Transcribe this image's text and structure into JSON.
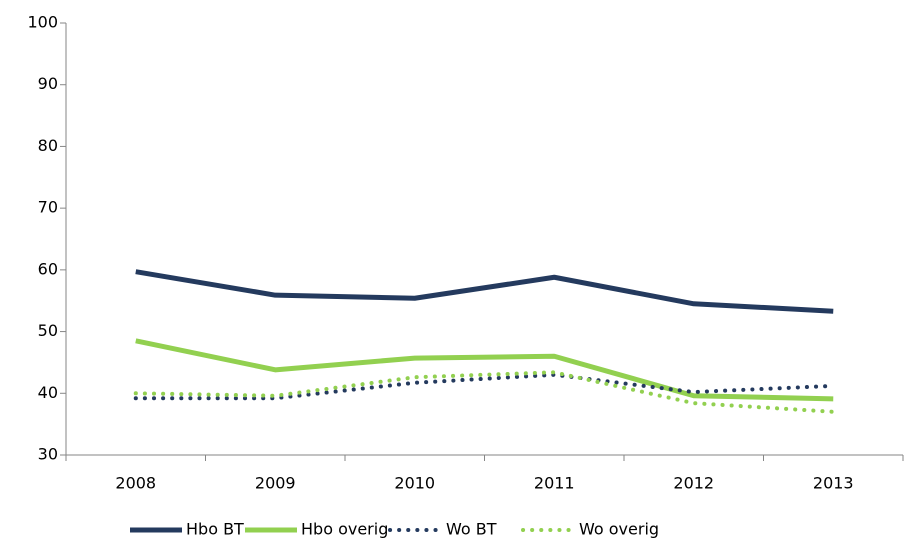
{
  "chart_data": {
    "type": "line",
    "categories": [
      "2008",
      "2009",
      "2010",
      "2011",
      "2012",
      "2013"
    ],
    "series": [
      {
        "name": "Hbo BT",
        "color": "#243a5e",
        "line_style": "solid",
        "values": [
          59.7,
          55.9,
          55.4,
          58.8,
          54.5,
          53.3
        ]
      },
      {
        "name": "Hbo overig",
        "color": "#92d050",
        "line_style": "solid",
        "values": [
          48.5,
          43.8,
          45.7,
          46.0,
          39.6,
          39.1
        ]
      },
      {
        "name": "Wo BT",
        "color": "#243a5e",
        "line_style": "dotted",
        "values": [
          39.2,
          39.2,
          41.7,
          43.0,
          40.2,
          41.2
        ]
      },
      {
        "name": "Wo overig",
        "color": "#92d050",
        "line_style": "dotted",
        "values": [
          40.0,
          39.6,
          42.6,
          43.4,
          38.4,
          37.0
        ]
      }
    ],
    "ylim": [
      30,
      100
    ],
    "yticks": [
      30,
      40,
      50,
      60,
      70,
      80,
      90,
      100
    ],
    "grid": false,
    "legend": "bottom"
  }
}
